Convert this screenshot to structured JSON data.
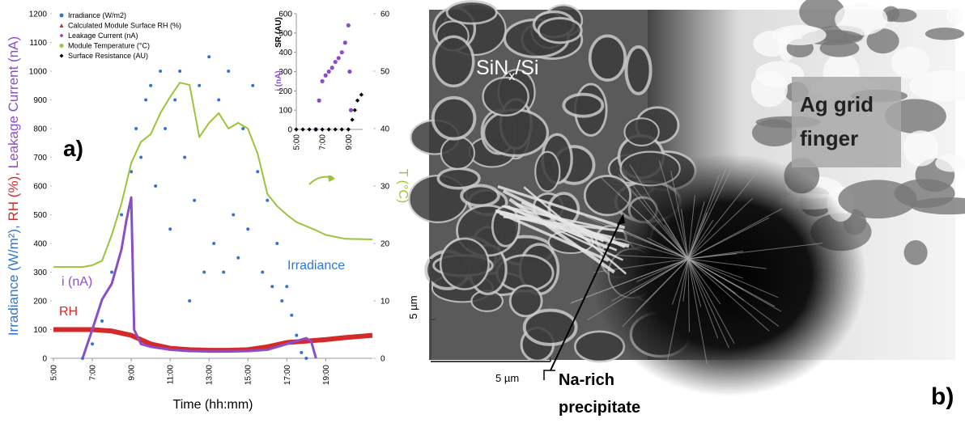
{
  "chart_data": [
    {
      "type": "mixed",
      "xlabel": "Time (hh:mm)",
      "ylabel": [
        {
          "text": "Irradiance (W/m²),",
          "color": "#2e75d6"
        },
        {
          "text": " RH (%),",
          "color": "#d42a2a"
        },
        {
          "text": " Leakage Current (nA)",
          "color": "#8a4fc8"
        }
      ],
      "y2label": "T (°C)",
      "xlim": [
        5,
        21.4
      ],
      "ylim": [
        0,
        1200
      ],
      "y2lim": [
        0,
        60
      ],
      "xticks": [
        {
          "value": 5,
          "label": "5:00"
        },
        {
          "value": 7,
          "label": "7:00"
        },
        {
          "value": 9,
          "label": "9:00"
        },
        {
          "value": 11,
          "label": "11:00"
        },
        {
          "value": 13,
          "label": "13:00"
        },
        {
          "value": 15,
          "label": "15:00"
        },
        {
          "value": 17,
          "label": "17:00"
        },
        {
          "value": 19,
          "label": "19:00"
        }
      ],
      "yticks": [
        0,
        100,
        200,
        300,
        400,
        500,
        600,
        700,
        800,
        900,
        1000,
        1100,
        1200
      ],
      "y2ticks": [
        0,
        10,
        20,
        30,
        40,
        50,
        60
      ],
      "annotations": {
        "panel": "a)",
        "irradiance": "Irradiance",
        "current": "i (nA)",
        "rh": "RH"
      },
      "series": [
        {
          "name": "Irradiance (W/m2)",
          "color": "#2e75d6",
          "style": "scatter",
          "marker": "dot",
          "x": [
            6.5,
            7,
            7.5,
            8,
            8.5,
            9,
            9.25,
            9.5,
            9.75,
            10,
            10.25,
            10.5,
            10.75,
            11,
            11.25,
            11.5,
            11.75,
            12,
            12.25,
            12.5,
            12.75,
            13,
            13.25,
            13.5,
            13.75,
            14,
            14.25,
            14.5,
            14.75,
            15,
            15.25,
            15.5,
            15.75,
            16,
            16.25,
            16.5,
            16.75,
            17,
            17.25,
            17.5,
            17.75,
            18
          ],
          "values": [
            0,
            50,
            130,
            300,
            500,
            650,
            800,
            700,
            900,
            950,
            600,
            1000,
            800,
            450,
            900,
            1000,
            700,
            200,
            550,
            950,
            300,
            1050,
            400,
            900,
            300,
            1000,
            500,
            350,
            800,
            450,
            950,
            650,
            300,
            550,
            250,
            400,
            200,
            250,
            150,
            80,
            20,
            0
          ]
        },
        {
          "name": "Calculated Module Surface RH (%)",
          "color": "#d42a2a",
          "style": "line",
          "width": 6,
          "marker": "triangle",
          "x": [
            5,
            7,
            8,
            9,
            10,
            11,
            12,
            13,
            14,
            15,
            16,
            17,
            18,
            19,
            20,
            21.4
          ],
          "values": [
            100,
            100,
            95,
            80,
            50,
            35,
            30,
            28,
            28,
            30,
            40,
            55,
            60,
            65,
            72,
            80
          ]
        },
        {
          "name": "Leakage Current (nA)",
          "color": "#8a4fc8",
          "style": "line",
          "width": 3,
          "marker": "diamond",
          "x": [
            6.5,
            7,
            7.5,
            8,
            8.5,
            8.75,
            9,
            9.15,
            9.5,
            10,
            11,
            12,
            13,
            14,
            15,
            16,
            17,
            17.5,
            18,
            18.25,
            18.5
          ],
          "values": [
            0,
            100,
            205,
            260,
            380,
            480,
            560,
            100,
            50,
            40,
            30,
            25,
            25,
            25,
            25,
            30,
            50,
            60,
            70,
            60,
            0
          ]
        },
        {
          "name": "Module Temperature (°C)",
          "color": "#9ac43c",
          "style": "line",
          "width": 2,
          "marker": "dot",
          "axis": "y2",
          "x": [
            5,
            6.5,
            7,
            7.5,
            8,
            8.5,
            9,
            9.5,
            10,
            10.5,
            11,
            11.5,
            12,
            12.5,
            13,
            13.5,
            14,
            14.5,
            15,
            15.5,
            16,
            16.5,
            17,
            17.5,
            18,
            18.5,
            19,
            20,
            21.4
          ],
          "values": [
            15.9,
            15.9,
            16.2,
            17,
            21.5,
            27,
            34,
            37.7,
            39,
            42.7,
            45.5,
            48,
            47.6,
            38.5,
            41,
            42.7,
            40,
            41,
            40,
            35.6,
            28.6,
            26.5,
            25,
            23.7,
            23,
            22.3,
            21.5,
            20.8,
            20.7
          ]
        }
      ]
    },
    {
      "type": "scatter",
      "ylabel": [
        {
          "text": "SR (AU)",
          "color": "#000000"
        },
        {
          "text": "i (nA)",
          "color": "#8a4fc8"
        }
      ],
      "xlim": [
        5,
        10.1
      ],
      "ylim": [
        0,
        600
      ],
      "xticks": [
        {
          "value": 5,
          "label": "5:00"
        },
        {
          "value": 7,
          "label": "7:00"
        },
        {
          "value": 9,
          "label": "9:00"
        }
      ],
      "yticks": [
        0,
        100,
        200,
        300,
        400,
        500,
        600
      ],
      "series": [
        {
          "color": "#8a4fc8",
          "marker": "dot",
          "x": [
            6.5,
            6.75,
            7,
            7.25,
            7.5,
            7.75,
            8,
            8.25,
            8.5,
            8.75,
            9,
            9.1,
            9.2
          ],
          "values": [
            0,
            150,
            250,
            280,
            300,
            320,
            350,
            370,
            400,
            450,
            540,
            300,
            100
          ]
        },
        {
          "name": "Surface Resistance (AU)",
          "color": "#000000",
          "marker": "diamond",
          "x": [
            5,
            5.5,
            6,
            6.5,
            7,
            7.5,
            8,
            8.5,
            9,
            9.3,
            9.5,
            9.7,
            10
          ],
          "values": [
            0,
            0,
            0,
            0,
            0,
            0,
            0,
            0,
            0,
            50,
            100,
            150,
            180
          ]
        }
      ]
    }
  ],
  "image_panel": {
    "panel_label": "b)",
    "material_label": [
      "SiN",
      "x",
      "/Si"
    ],
    "grid_label": [
      "Ag grid",
      "finger"
    ],
    "precipitate_label": [
      "Na-rich",
      "precipitate"
    ],
    "scale_bar_labels": [
      "5 µm",
      "5 µm"
    ]
  }
}
